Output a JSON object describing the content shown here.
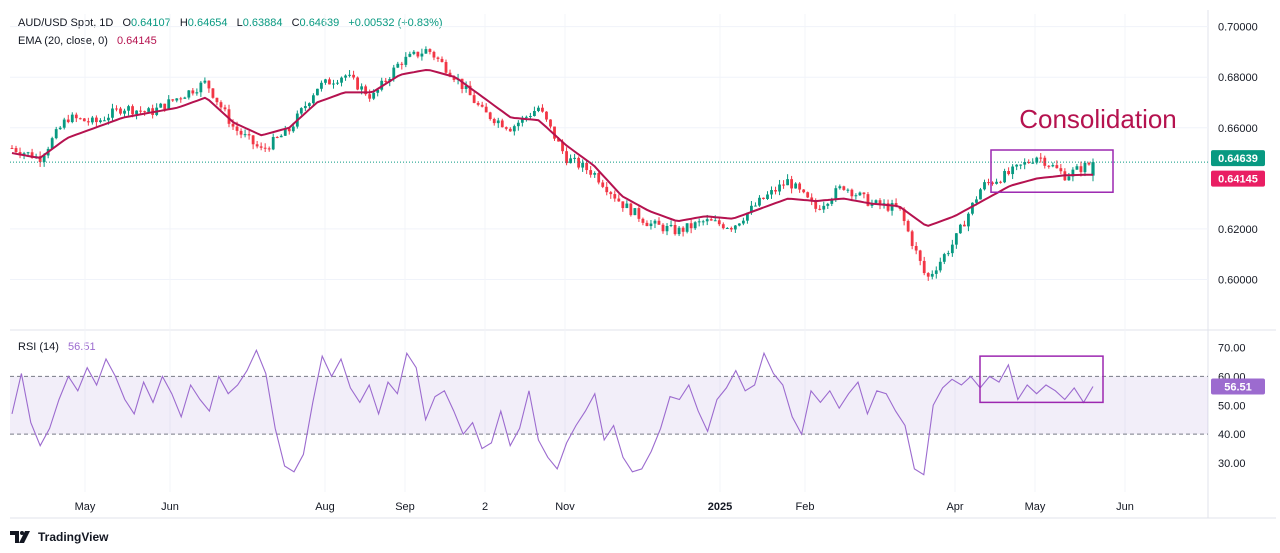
{
  "header": {
    "symbol": "AUD/USD Spot, 1D",
    "o_label": "O",
    "o_value": "0.64107",
    "h_label": "H",
    "h_value": "0.64654",
    "l_label": "L",
    "l_value": "0.63884",
    "c_label": "C",
    "c_value": "0.64639",
    "change": "+0.00532 (+0.83%)",
    "ema_label": "EMA (20, close, 0)",
    "ema_value": "0.64145",
    "rsi_label": "RSI (14)",
    "rsi_value": "56.51"
  },
  "footer": {
    "brand": "TradingView",
    "logo_icon": "tradingview-logo-icon"
  },
  "colors": {
    "up": "#089981",
    "down": "#f23645",
    "ema": "#b5124f",
    "rsi": "#9c6bcf",
    "rsi_band": "#7e57c2",
    "box": "#9c27b0",
    "annotation": "#b5124f"
  },
  "chart_data": [
    {
      "type": "candlestick",
      "title": "AUD/USD Spot, 1D",
      "ylim": [
        0.58,
        0.705
      ],
      "yticks": [
        "0.70000",
        "0.68000",
        "0.66000",
        "0.62000",
        "0.60000"
      ],
      "ytick_values": [
        0.7,
        0.68,
        0.66,
        0.62,
        0.6
      ],
      "xtick_labels": [
        "May",
        "Jun",
        "Aug",
        "Sep",
        "2",
        "Nov",
        "2025",
        "Feb",
        "Apr",
        "May",
        "Jun"
      ],
      "price_labels": [
        {
          "text": "0.64639",
          "value": 0.64639,
          "color": "#089981"
        },
        {
          "text": "0.64145",
          "value": 0.64145,
          "color": "#e91e63"
        }
      ],
      "close_line": 0.64639,
      "annotation": "Consolidation",
      "consolidation_box": {
        "from_label": "Apr",
        "to_label": "May",
        "low": 0.6345,
        "high": 0.6512
      },
      "close_path": [
        [
          "Apr",
          0.652
        ],
        [
          "May",
          0.648
        ],
        [
          "May",
          0.664
        ],
        [
          "Jun",
          0.662
        ],
        [
          "Jun",
          0.668
        ],
        [
          "Jul",
          0.666
        ],
        [
          "Jul",
          0.672
        ],
        [
          "Jul",
          0.678
        ],
        [
          "Aug",
          0.66
        ],
        [
          "Aug",
          0.651
        ],
        [
          "Aug",
          0.659
        ],
        [
          "Sep",
          0.676
        ],
        [
          "Sep",
          0.681
        ],
        [
          "Sep",
          0.672
        ],
        [
          "Sep",
          0.686
        ],
        [
          "Oct",
          0.691
        ],
        [
          "Oct",
          0.68
        ],
        [
          "Oct",
          0.666
        ],
        [
          "Nov",
          0.66
        ],
        [
          "Nov",
          0.668
        ],
        [
          "Nov",
          0.648
        ],
        [
          "Dec",
          0.642
        ],
        [
          "Dec",
          0.63
        ],
        [
          "Dec",
          0.622
        ],
        [
          "Jan",
          0.619
        ],
        [
          "Jan",
          0.623
        ],
        [
          "Feb",
          0.621
        ],
        [
          "Feb",
          0.631
        ],
        [
          "Feb",
          0.639
        ],
        [
          "Mar",
          0.628
        ],
        [
          "Mar",
          0.637
        ],
        [
          "Mar",
          0.63
        ],
        [
          "Apr",
          0.628
        ],
        [
          "Apr",
          0.6
        ],
        [
          "Apr",
          0.615
        ],
        [
          "Apr",
          0.637
        ],
        [
          "May",
          0.642
        ],
        [
          "May",
          0.649
        ],
        [
          "May",
          0.641
        ],
        [
          "May",
          0.6464
        ]
      ],
      "ema_path": [
        [
          "Apr",
          0.65
        ],
        [
          "May",
          0.648
        ],
        [
          "May",
          0.656
        ],
        [
          "Jun",
          0.66
        ],
        [
          "Jun",
          0.664
        ],
        [
          "Jul",
          0.666
        ],
        [
          "Jul",
          0.668
        ],
        [
          "Jul",
          0.672
        ],
        [
          "Aug",
          0.662
        ],
        [
          "Aug",
          0.657
        ],
        [
          "Aug",
          0.66
        ],
        [
          "Sep",
          0.67
        ],
        [
          "Sep",
          0.674
        ],
        [
          "Sep",
          0.674
        ],
        [
          "Sep",
          0.681
        ],
        [
          "Oct",
          0.683
        ],
        [
          "Oct",
          0.68
        ],
        [
          "Oct",
          0.672
        ],
        [
          "Nov",
          0.664
        ],
        [
          "Nov",
          0.663
        ],
        [
          "Nov",
          0.653
        ],
        [
          "Dec",
          0.645
        ],
        [
          "Dec",
          0.633
        ],
        [
          "Dec",
          0.627
        ],
        [
          "Jan",
          0.623
        ],
        [
          "Jan",
          0.625
        ],
        [
          "Feb",
          0.624
        ],
        [
          "Feb",
          0.628
        ],
        [
          "Feb",
          0.632
        ],
        [
          "Mar",
          0.631
        ],
        [
          "Mar",
          0.632
        ],
        [
          "Mar",
          0.63
        ],
        [
          "Apr",
          0.629
        ],
        [
          "Apr",
          0.621
        ],
        [
          "Apr",
          0.625
        ],
        [
          "Apr",
          0.631
        ],
        [
          "May",
          0.637
        ],
        [
          "May",
          0.64
        ],
        [
          "May",
          0.6412
        ],
        [
          "May",
          0.64145
        ]
      ]
    },
    {
      "type": "line",
      "title": "RSI (14)",
      "ylim": [
        20,
        75
      ],
      "yticks": [
        "70.00",
        "60.00",
        "50.00",
        "40.00",
        "30.00"
      ],
      "ytick_values": [
        70,
        60,
        50,
        40,
        30
      ],
      "band": [
        40,
        60
      ],
      "current_label": {
        "text": "56.51",
        "value": 56.51
      },
      "consolidation_box": {
        "low": 51,
        "high": 67
      },
      "series": [
        {
          "values": [
            47,
            61,
            44,
            36,
            42,
            52,
            60,
            55,
            63,
            57,
            66,
            60,
            52,
            47,
            58,
            51,
            60,
            54,
            46,
            57,
            52,
            48,
            60,
            54,
            57,
            62,
            69,
            61,
            42,
            29,
            27,
            33,
            51,
            67,
            60,
            66,
            56,
            51,
            57,
            47,
            58,
            54,
            68,
            63,
            45,
            53,
            55,
            48,
            40,
            44,
            35,
            37,
            48,
            36,
            42,
            55,
            38,
            32,
            28,
            37,
            43,
            48,
            54,
            38,
            43,
            32,
            27,
            28,
            34,
            42,
            53,
            52,
            57,
            48,
            41,
            52,
            56,
            62,
            55,
            57,
            68,
            61,
            57,
            46,
            40,
            55,
            51,
            55,
            49,
            54,
            58,
            47,
            55,
            54,
            48,
            43,
            28,
            26,
            50,
            56,
            59,
            57,
            60,
            56,
            60,
            58,
            64,
            52,
            57,
            54,
            57,
            55,
            52,
            56,
            51,
            56.51
          ]
        }
      ],
      "xtick_labels": [
        "May",
        "Jun",
        "Aug",
        "Sep",
        "2",
        "Nov",
        "2025",
        "Feb",
        "Apr",
        "May",
        "Jun"
      ]
    }
  ]
}
